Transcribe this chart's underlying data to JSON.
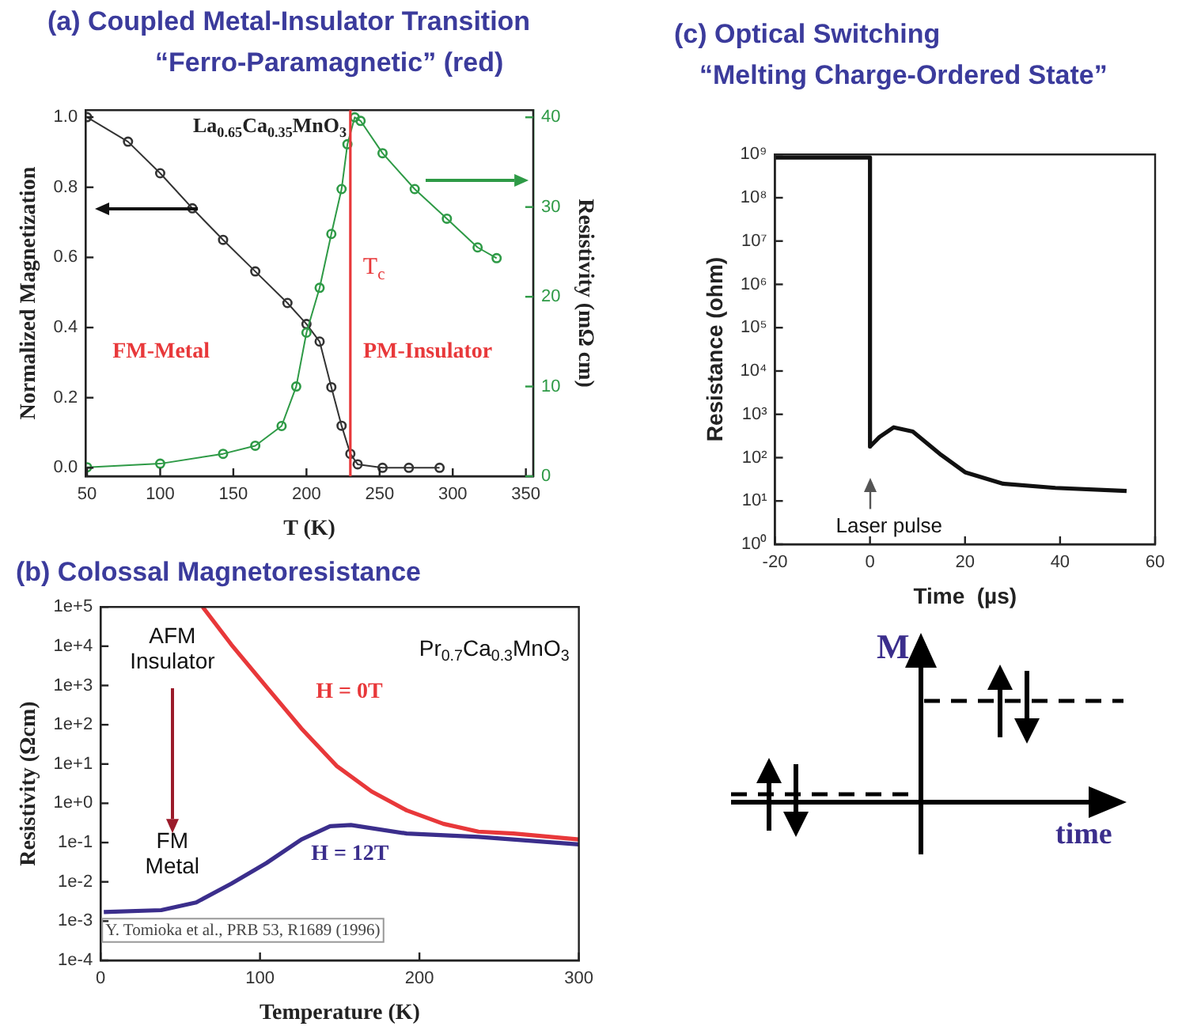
{
  "chart_data": [
    {
      "type": "line",
      "title": "(a) Coupled Metal-Insulator Transition",
      "subtitle": "“Ferro-Paramagnetic” (red)",
      "xlabel": "T (K)",
      "ylabel": "Normalized Magnetization",
      "y2label": "Resistivity (mΩ cm)",
      "annotations": [
        "La$_{0.65}$Ca$_{0.35}$MnO$_{3}$",
        "FM-Metal",
        "PM-Insulator"
      ],
      "marker": "circle",
      "grid": false,
      "legend": false,
      "xlim": [
        49,
        355
      ],
      "xticks": [
        50,
        100,
        150,
        200,
        250,
        300,
        350
      ],
      "ylim": [
        -0.024,
        1.02
      ],
      "yticks": [
        {
          "value": 0,
          "label": "0.0"
        },
        0.2,
        0.4,
        0.6,
        0.8,
        {
          "value": 1,
          "label": "1.0"
        }
      ],
      "y2lim": [
        0,
        40.8
      ],
      "y2ticks": [
        0,
        10,
        20,
        30,
        40
      ],
      "ref_lines": [
        {
          "axis": "x",
          "value": 230,
          "label": "T$_{c}$",
          "color": "#e8383a"
        }
      ],
      "series": [
        {
          "color": "#333333",
          "x": [
            50,
            78,
            100,
            122,
            143,
            165,
            187,
            200,
            209,
            217,
            224,
            230,
            235,
            252,
            270,
            291
          ],
          "values": [
            1.0,
            0.93,
            0.84,
            0.74,
            0.65,
            0.56,
            0.47,
            0.41,
            0.36,
            0.23,
            0.12,
            0.04,
            0.01,
            0.0,
            0.0,
            0.0
          ]
        },
        {
          "color": "#2e9a46",
          "axis": "y2",
          "x": [
            50,
            100,
            143,
            165,
            183,
            193,
            200,
            209,
            217,
            224,
            228,
            233,
            237,
            252,
            274,
            296,
            317,
            330
          ],
          "values": [
            1,
            1.4,
            2.5,
            3.4,
            5.6,
            10,
            16,
            21,
            27,
            32,
            37,
            40,
            39.6,
            36,
            32,
            28.7,
            25.5,
            24.3
          ]
        }
      ]
    },
    {
      "type": "line",
      "title": "(b)  Colossal Magnetoresistance",
      "xlabel": "Temperature (K)",
      "ylabel": "Resistivity (Ωcm)",
      "annotations": [
        "Pr$_{0.7}$Ca$_{0.3}$MnO$_{3}$",
        "AFM Insulator",
        "FM Metal",
        "Y. Tomioka et al., PRB 53, R1689 (1996)"
      ],
      "log": "y",
      "grid": false,
      "legend": false,
      "xlim": [
        0,
        300
      ],
      "xticks": [
        0,
        100,
        200,
        300
      ],
      "ylim": [
        0.0001,
        100000
      ],
      "yticks": [
        {
          "value": 0.0001,
          "label": "1e-4"
        },
        {
          "value": 0.001,
          "label": "1e-3"
        },
        {
          "value": 0.01,
          "label": "1e-2"
        },
        {
          "value": 0.1,
          "label": "1e-1"
        },
        {
          "value": 1,
          "label": "1e+0"
        },
        {
          "value": 10,
          "label": "1e+1"
        },
        {
          "value": 100,
          "label": "1e+2"
        },
        {
          "value": 1000,
          "label": "1e+3"
        },
        {
          "value": 10000,
          "label": "1e+4"
        },
        {
          "value": 100000,
          "label": "1e+5"
        }
      ],
      "series": [
        {
          "name": "H = 0T",
          "color": "#e8383a",
          "x": [
            64,
            82,
            104,
            126,
            148,
            170,
            192,
            215,
            237,
            259,
            300
          ],
          "values": [
            100000,
            11000,
            930,
            80,
            9,
            2,
            0.66,
            0.3,
            0.19,
            0.17,
            0.12
          ]
        },
        {
          "name": "H = 12T",
          "color": "#3b2e8c",
          "x": [
            2,
            38,
            60,
            82,
            104,
            126,
            144,
            157,
            192,
            237,
            300
          ],
          "values": [
            0.0017,
            0.0019,
            0.003,
            0.009,
            0.03,
            0.12,
            0.26,
            0.28,
            0.17,
            0.14,
            0.09
          ]
        }
      ]
    },
    {
      "type": "line",
      "title": "(c)  Optical Switching",
      "subtitle": "“Melting Charge-Ordered State”",
      "xlabel": "Time  (µs)",
      "ylabel": "Resistance (ohm)",
      "annotations": [
        "Laser pulse"
      ],
      "log": "y",
      "grid": false,
      "legend": false,
      "xlim": [
        -20,
        60
      ],
      "xticks": [
        -20,
        0,
        20,
        40,
        60
      ],
      "ylim": [
        1,
        1000000000
      ],
      "yticks": [
        {
          "value": 1,
          "label": "10⁰"
        },
        {
          "value": 10,
          "label": "10¹"
        },
        {
          "value": 100,
          "label": "10²"
        },
        {
          "value": 1000,
          "label": "10³"
        },
        {
          "value": 10000,
          "label": "10⁴"
        },
        {
          "value": 100000,
          "label": "10⁵"
        },
        {
          "value": 1000000,
          "label": "10⁶"
        },
        {
          "value": 10000000,
          "label": "10⁷"
        },
        {
          "value": 100000000,
          "label": "10⁸"
        },
        {
          "value": 1000000000,
          "label": "10⁹"
        }
      ],
      "series": [
        {
          "color": "#111111",
          "x": [
            -20,
            0,
            0,
            2,
            5,
            9,
            15,
            20,
            28,
            39,
            54
          ],
          "values": [
            850000000,
            850000000,
            180,
            300,
            500,
            400,
            115,
            46,
            25,
            20,
            17
          ]
        }
      ]
    },
    {
      "type": "other",
      "annotations": [
        "M",
        "time"
      ]
    }
  ]
}
